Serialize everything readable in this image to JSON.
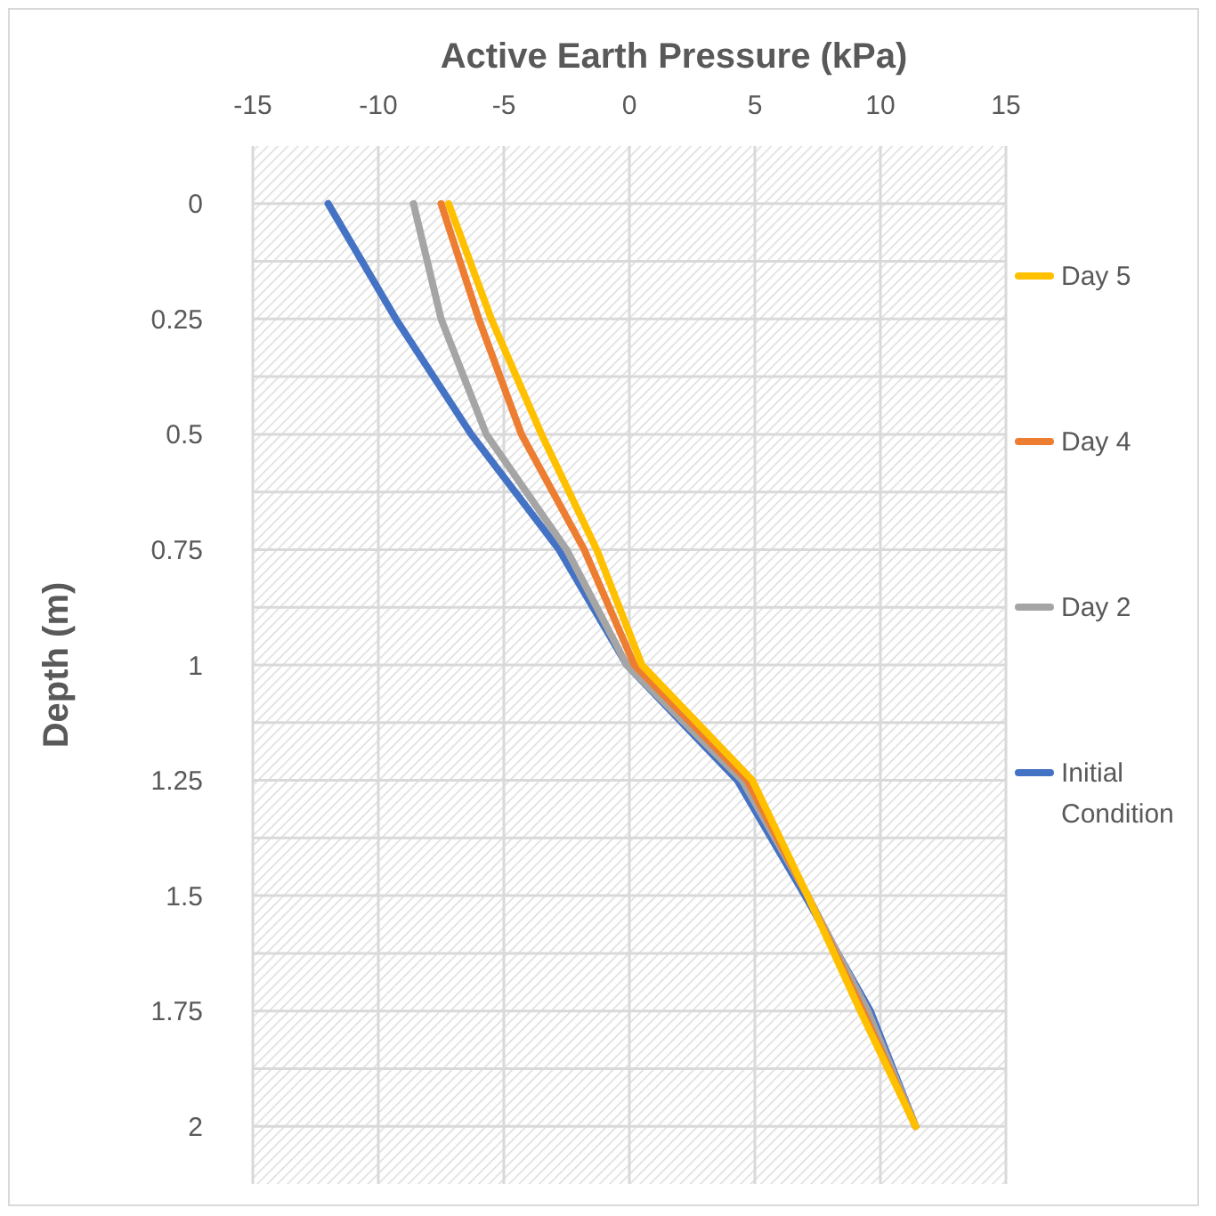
{
  "chart_data": {
    "type": "line",
    "xlabel": "Active Earth Pressure (kPa)",
    "ylabel": "Depth (m)",
    "xlim": [
      -15,
      15
    ],
    "xticks": [
      -15,
      -10,
      -5,
      0,
      5,
      10,
      15
    ],
    "ylim": [
      2.125,
      -0.125
    ],
    "yticks": [
      0,
      {
        "value": 0.125,
        "label": null
      },
      0.25,
      {
        "value": 0.375,
        "label": null
      },
      0.5,
      {
        "value": 0.625,
        "label": null
      },
      0.75,
      {
        "value": 0.875,
        "label": null
      },
      1,
      {
        "value": 1.125,
        "label": null
      },
      1.25,
      {
        "value": 1.375,
        "label": null
      },
      1.5,
      {
        "value": 1.625,
        "label": null
      },
      1.75,
      {
        "value": 1.875,
        "label": null
      },
      2
    ],
    "grid": true,
    "legend": "right",
    "marker": "none",
    "line_style": "solid",
    "series": [
      {
        "name": "Initial Condition",
        "color": "#4472c4",
        "x": [
          -12,
          -9.3,
          -6.3,
          -2.8,
          -0.1,
          4.3,
          7.0,
          9.6,
          11.4
        ],
        "values": [
          0,
          0.25,
          0.5,
          0.75,
          1,
          1.25,
          1.5,
          1.75,
          2
        ]
      },
      {
        "name": "Day 2",
        "color": "#a5a5a5",
        "x": [
          -8.6,
          -7.5,
          -5.7,
          -2.5,
          -0.1,
          4.5,
          7.1,
          9.5,
          11.4
        ],
        "values": [
          0,
          0.25,
          0.5,
          0.75,
          1,
          1.25,
          1.5,
          1.75,
          2
        ]
      },
      {
        "name": "Day 4",
        "color": "#ed7d31",
        "x": [
          -7.5,
          -6.0,
          -4.3,
          -1.8,
          0.2,
          4.7,
          7.1,
          9.3,
          11.4
        ],
        "values": [
          0,
          0.25,
          0.5,
          0.75,
          1,
          1.25,
          1.5,
          1.75,
          2
        ]
      },
      {
        "name": "Day 5",
        "color": "#ffc000",
        "x": [
          -7.2,
          -5.5,
          -3.5,
          -1.3,
          0.5,
          4.9,
          7.1,
          9.2,
          11.4
        ],
        "values": [
          0,
          0.25,
          0.5,
          0.75,
          1,
          1.25,
          1.5,
          1.75,
          2
        ]
      }
    ]
  }
}
